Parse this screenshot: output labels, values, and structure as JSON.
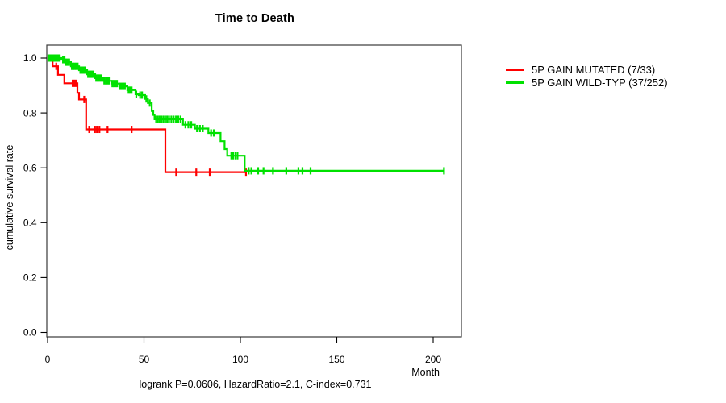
{
  "title": "Time to Death",
  "annotation": "logrank P=0.0606, HazardRatio=2.1, C-index=0.731",
  "axes": {
    "x_label": "Month",
    "y_label": "cumulative survival rate"
  },
  "legend": [
    {
      "label": "5P GAIN MUTATED (7/33)",
      "color": "#ff0000"
    },
    {
      "label": "5P GAIN WILD-TYP (37/252)",
      "color": "#00e100"
    }
  ],
  "chart_data": {
    "type": "line",
    "subtype": "kaplan-meier-step",
    "title": "Time to Death",
    "xlabel": "Month",
    "ylabel": "cumulative survival rate",
    "xlim": [
      0,
      215
    ],
    "ylim": [
      0,
      1.0
    ],
    "x_ticks": [
      0,
      50,
      100,
      150,
      200
    ],
    "y_ticks": [
      0.0,
      0.2,
      0.4,
      0.6,
      0.8,
      1.0
    ],
    "grid": false,
    "legend_position": "right-outside",
    "series": [
      {
        "name": "5P GAIN MUTATED (7/33)",
        "color": "#ff0000",
        "events_total": "7/33",
        "steps": [
          [
            0,
            1.0
          ],
          [
            2.6,
            0.97
          ],
          [
            5.4,
            0.939
          ],
          [
            8.7,
            0.908
          ],
          [
            15.5,
            0.873
          ],
          [
            16.3,
            0.849
          ],
          [
            20.0,
            0.74
          ],
          [
            61.1,
            0.584
          ]
        ],
        "end_month": 103,
        "censor_months": [
          4.5,
          13.0,
          13.8,
          14.6,
          19.0,
          21.6,
          24.6,
          25.6,
          26.9,
          31.1,
          43.6,
          66.7,
          77.1,
          84.1,
          102.9
        ]
      },
      {
        "name": "5P GAIN WILD-TYP (37/252)",
        "color": "#00e100",
        "events_total": "37/252",
        "steps": [
          [
            0,
            1.0
          ],
          [
            7.1,
            0.994
          ],
          [
            9.5,
            0.985
          ],
          [
            12.1,
            0.97
          ],
          [
            16.3,
            0.956
          ],
          [
            20.5,
            0.941
          ],
          [
            24.7,
            0.927
          ],
          [
            28.9,
            0.917
          ],
          [
            33.1,
            0.907
          ],
          [
            37.2,
            0.897
          ],
          [
            41.4,
            0.883
          ],
          [
            45.6,
            0.868
          ],
          [
            47.2,
            0.865
          ],
          [
            50.6,
            0.851
          ],
          [
            52.0,
            0.836
          ],
          [
            54.0,
            0.807
          ],
          [
            54.8,
            0.793
          ],
          [
            55.5,
            0.777
          ],
          [
            70.2,
            0.757
          ],
          [
            76.4,
            0.743
          ],
          [
            83.4,
            0.727
          ],
          [
            89.7,
            0.697
          ],
          [
            91.8,
            0.668
          ],
          [
            93.2,
            0.644
          ],
          [
            102.2,
            0.589
          ]
        ],
        "end_month": 206,
        "censor_months": [
          0.4,
          0.9,
          1.4,
          2.0,
          2.6,
          3.2,
          3.8,
          4.4,
          5.0,
          5.6,
          6.3,
          8.0,
          8.8,
          9.6,
          10.4,
          11.2,
          12.6,
          13.3,
          14.0,
          14.8,
          15.6,
          17.0,
          17.8,
          18.6,
          19.4,
          21.0,
          21.8,
          22.6,
          23.4,
          25.2,
          26.0,
          26.8,
          27.6,
          29.4,
          30.2,
          31.0,
          31.8,
          33.6,
          34.4,
          35.2,
          36.0,
          37.7,
          38.5,
          39.3,
          40.1,
          42.0,
          42.8,
          43.6,
          46.0,
          48.0,
          49.0,
          51.2,
          53.0,
          56.3,
          57.2,
          58.1,
          59.0,
          60.0,
          61.0,
          62.0,
          63.0,
          64.2,
          65.4,
          66.6,
          67.8,
          69.0,
          71.5,
          73.0,
          74.5,
          77.5,
          79.0,
          80.5,
          84.8,
          86.2,
          95.3,
          96.2,
          97.4,
          98.5,
          104.3,
          105.7,
          109.2,
          112.0,
          116.9,
          123.8,
          130.1,
          132.2,
          136.4,
          205.6
        ]
      }
    ]
  }
}
